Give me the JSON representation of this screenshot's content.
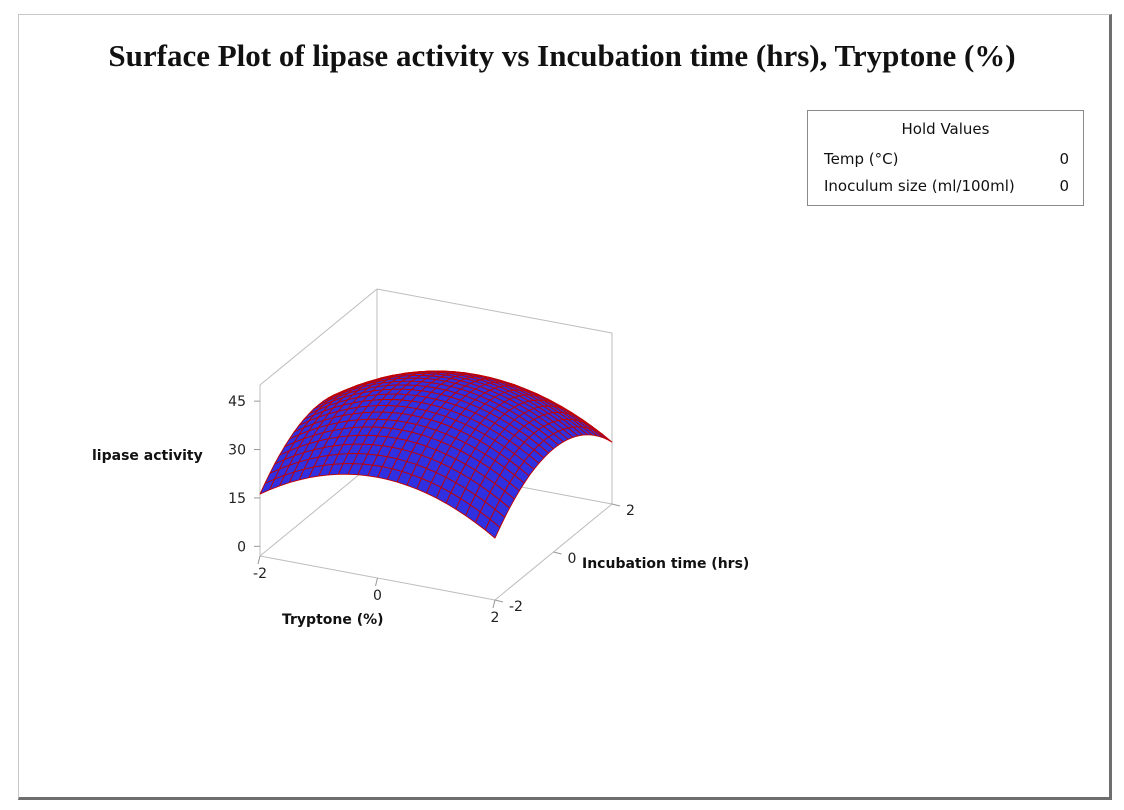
{
  "chart_data": {
    "type": "surface",
    "title": "Surface Plot of lipase activity vs Incubation time (hrs), Tryptone (%)",
    "x_label": "Tryptone (%)",
    "y_label": "Incubation time (hrs)",
    "z_label": "lipase activity",
    "x_range": [
      -2,
      2
    ],
    "y_range": [
      -2,
      2
    ],
    "z_range": [
      -3,
      50
    ],
    "x_ticks": [
      "-2",
      "0",
      "2"
    ],
    "y_ticks": [
      "-2",
      "0",
      "2"
    ],
    "z_ticks": [
      "0",
      "15",
      "30",
      "45"
    ],
    "surface_color": "#3030e0",
    "mesh_color": "#c00000",
    "model": {
      "description": "quadratic dome: z = c0 + cx*x + cy*y + cxx*x^2 + cyy*y^2 + cxy*x*y",
      "c0": 41,
      "cx": 0,
      "cy": 0,
      "cxx": -3.0,
      "cyy": -3.2,
      "cxy": 0
    },
    "hold_values": {
      "title": "Hold Values",
      "items": [
        {
          "label": "Temp (°C)",
          "value": "0"
        },
        {
          "label": "Inoculum size (ml/100ml)",
          "value": "0"
        }
      ]
    }
  }
}
